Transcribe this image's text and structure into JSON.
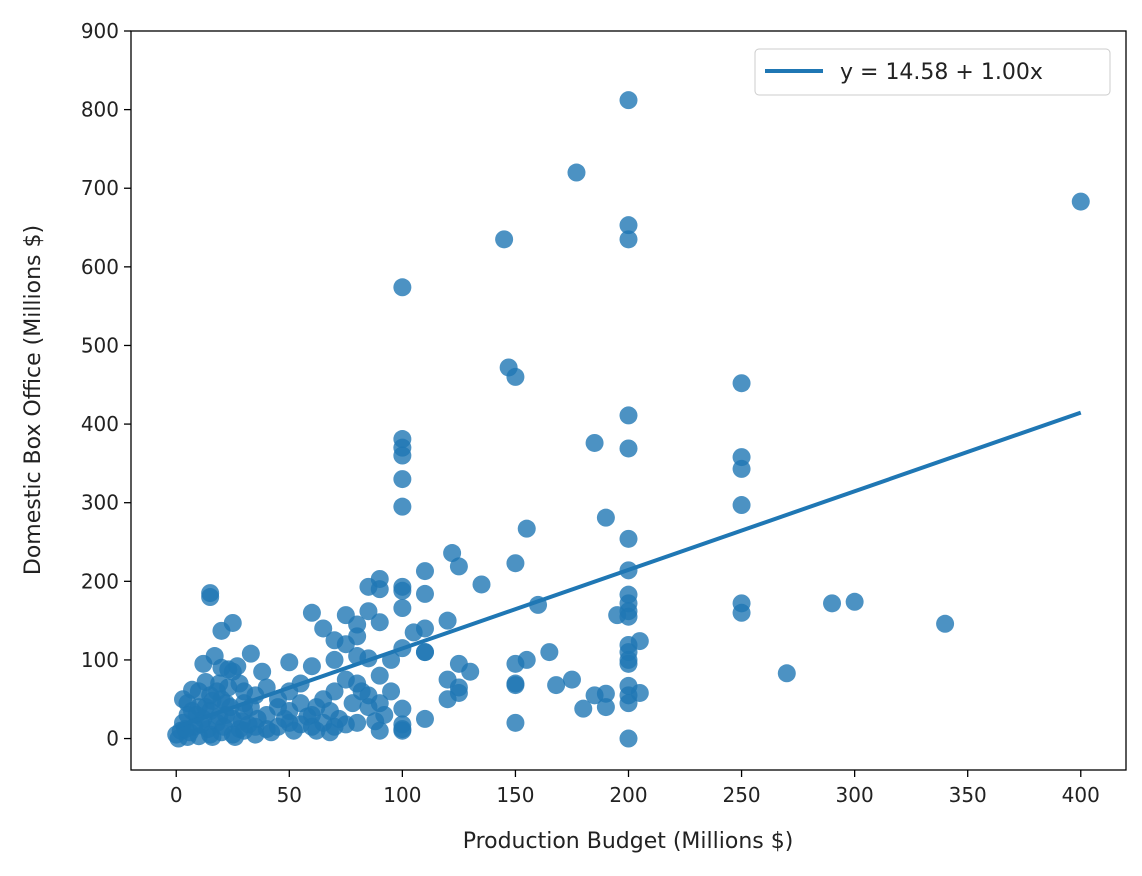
{
  "chart_data": {
    "type": "scatter",
    "title": "",
    "xlabel": "Production Budget (Millions $)",
    "ylabel": "Domestic Box Office (Millions $)",
    "xlim": [
      -20,
      420
    ],
    "ylim": [
      -40,
      900
    ],
    "xticks": [
      0,
      50,
      100,
      150,
      200,
      250,
      300,
      350,
      400
    ],
    "yticks": [
      0,
      100,
      200,
      300,
      400,
      500,
      600,
      700,
      800,
      900
    ],
    "grid": false,
    "legend": {
      "placement": "top-right",
      "entries": [
        "y = 14.58 + 1.00x"
      ]
    },
    "color": "#1f77b4",
    "regression": {
      "intercept": 14.58,
      "slope": 1.0,
      "x_range": [
        0,
        400
      ]
    },
    "points": [
      [
        200,
        812
      ],
      [
        177,
        720
      ],
      [
        400,
        683
      ],
      [
        200,
        653
      ],
      [
        145,
        635
      ],
      [
        200,
        635
      ],
      [
        100,
        574
      ],
      [
        147,
        472
      ],
      [
        150,
        460
      ],
      [
        250,
        452
      ],
      [
        200,
        411
      ],
      [
        100,
        381
      ],
      [
        100,
        370
      ],
      [
        185,
        376
      ],
      [
        200,
        369
      ],
      [
        100,
        360
      ],
      [
        250,
        358
      ],
      [
        250,
        343
      ],
      [
        100,
        330
      ],
      [
        250,
        297
      ],
      [
        100,
        295
      ],
      [
        190,
        281
      ],
      [
        155,
        267
      ],
      [
        200,
        254
      ],
      [
        122,
        236
      ],
      [
        150,
        223
      ],
      [
        125,
        219
      ],
      [
        200,
        214
      ],
      [
        110,
        213
      ],
      [
        135,
        196
      ],
      [
        90,
        203
      ],
      [
        85,
        193
      ],
      [
        100,
        193
      ],
      [
        100,
        188
      ],
      [
        90,
        190
      ],
      [
        110,
        184
      ],
      [
        200,
        183
      ],
      [
        200,
        172
      ],
      [
        160,
        170
      ],
      [
        290,
        172
      ],
      [
        300,
        174
      ],
      [
        250,
        172
      ],
      [
        200,
        162
      ],
      [
        250,
        160
      ],
      [
        195,
        157
      ],
      [
        200,
        155
      ],
      [
        340,
        146
      ],
      [
        60,
        160
      ],
      [
        75,
        157
      ],
      [
        85,
        162
      ],
      [
        80,
        145
      ],
      [
        65,
        140
      ],
      [
        90,
        148
      ],
      [
        100,
        166
      ],
      [
        15,
        185
      ],
      [
        15,
        180
      ],
      [
        25,
        147
      ],
      [
        20,
        137
      ],
      [
        120,
        150
      ],
      [
        110,
        140
      ],
      [
        70,
        125
      ],
      [
        75,
        120
      ],
      [
        80,
        130
      ],
      [
        105,
        135
      ],
      [
        100,
        115
      ],
      [
        205,
        124
      ],
      [
        200,
        119
      ],
      [
        200,
        110
      ],
      [
        165,
        110
      ],
      [
        200,
        100
      ],
      [
        200,
        95
      ],
      [
        150,
        95
      ],
      [
        155,
        100
      ],
      [
        125,
        95
      ],
      [
        110,
        110
      ],
      [
        95,
        100
      ],
      [
        80,
        105
      ],
      [
        85,
        102
      ],
      [
        70,
        100
      ],
      [
        60,
        92
      ],
      [
        50,
        97
      ],
      [
        33,
        108
      ],
      [
        38,
        85
      ],
      [
        270,
        83
      ],
      [
        130,
        85
      ],
      [
        120,
        75
      ],
      [
        125,
        65
      ],
      [
        125,
        58
      ],
      [
        150,
        70
      ],
      [
        150,
        68
      ],
      [
        175,
        75
      ],
      [
        168,
        68
      ],
      [
        185,
        55
      ],
      [
        190,
        57
      ],
      [
        200,
        67
      ],
      [
        205,
        58
      ],
      [
        200,
        55
      ],
      [
        200,
        45
      ],
      [
        180,
        38
      ],
      [
        190,
        40
      ],
      [
        200,
        0
      ],
      [
        150,
        20
      ],
      [
        110,
        25
      ],
      [
        100,
        10
      ],
      [
        100,
        18
      ],
      [
        100,
        38
      ],
      [
        90,
        45
      ],
      [
        85,
        40
      ],
      [
        80,
        20
      ],
      [
        75,
        18
      ],
      [
        70,
        15
      ],
      [
        65,
        20
      ],
      [
        60,
        15
      ],
      [
        55,
        18
      ],
      [
        50,
        20
      ],
      [
        45,
        15
      ],
      [
        40,
        12
      ],
      [
        35,
        15
      ],
      [
        30,
        10
      ],
      [
        25,
        5
      ],
      [
        20,
        8
      ],
      [
        15,
        5
      ],
      [
        10,
        3
      ],
      [
        5,
        2
      ],
      [
        0,
        5
      ],
      [
        2,
        10
      ],
      [
        3,
        50
      ],
      [
        7,
        62
      ],
      [
        10,
        40
      ],
      [
        12,
        95
      ],
      [
        15,
        55
      ],
      [
        17,
        105
      ],
      [
        18,
        60
      ],
      [
        20,
        90
      ],
      [
        22,
        45
      ],
      [
        25,
        85
      ],
      [
        28,
        70
      ],
      [
        30,
        35
      ],
      [
        35,
        55
      ],
      [
        40,
        30
      ],
      [
        45,
        40
      ],
      [
        50,
        60
      ],
      [
        55,
        45
      ],
      [
        60,
        30
      ],
      [
        65,
        50
      ],
      [
        70,
        60
      ],
      [
        75,
        75
      ],
      [
        80,
        70
      ],
      [
        85,
        55
      ],
      [
        90,
        80
      ],
      [
        95,
        60
      ],
      [
        5,
        30
      ],
      [
        8,
        15
      ],
      [
        12,
        25
      ],
      [
        15,
        35
      ],
      [
        18,
        20
      ],
      [
        22,
        30
      ],
      [
        25,
        25
      ],
      [
        28,
        12
      ],
      [
        10,
        60
      ],
      [
        20,
        50
      ],
      [
        30,
        45
      ],
      [
        40,
        65
      ],
      [
        45,
        50
      ],
      [
        50,
        35
      ],
      [
        55,
        70
      ],
      [
        5,
        45
      ],
      [
        13,
        72
      ],
      [
        27,
        92
      ],
      [
        23,
        65
      ],
      [
        33,
        40
      ],
      [
        3,
        20
      ],
      [
        6,
        8
      ],
      [
        9,
        30
      ],
      [
        14,
        12
      ],
      [
        16,
        48
      ],
      [
        19,
        28
      ],
      [
        21,
        15
      ],
      [
        24,
        40
      ],
      [
        26,
        2
      ],
      [
        29,
        22
      ],
      [
        32,
        18
      ],
      [
        36,
        25
      ],
      [
        42,
        8
      ],
      [
        48,
        25
      ],
      [
        52,
        10
      ],
      [
        58,
        28
      ],
      [
        62,
        40
      ],
      [
        68,
        35
      ],
      [
        72,
        25
      ],
      [
        78,
        45
      ],
      [
        82,
        60
      ],
      [
        88,
        22
      ],
      [
        92,
        30
      ],
      [
        100,
        12
      ],
      [
        1,
        0
      ],
      [
        4,
        12
      ],
      [
        11,
        18
      ],
      [
        16,
        2
      ],
      [
        7,
        35
      ],
      [
        13,
        40
      ],
      [
        19,
        70
      ],
      [
        23,
        88
      ],
      [
        30,
        60
      ],
      [
        35,
        5
      ],
      [
        62,
        10
      ],
      [
        68,
        8
      ],
      [
        110,
        110
      ],
      [
        90,
        10
      ],
      [
        120,
        50
      ]
    ]
  }
}
